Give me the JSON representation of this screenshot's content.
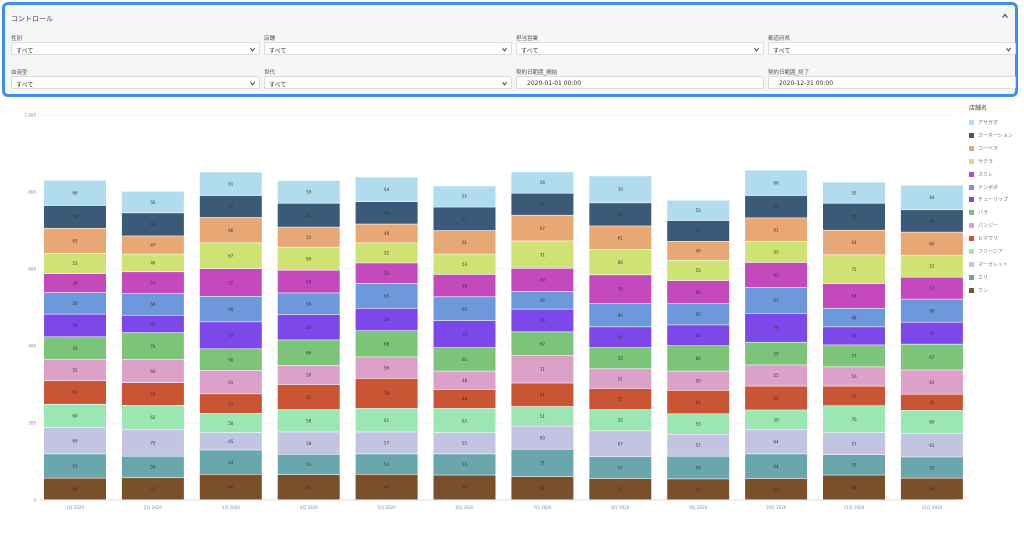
{
  "controls": {
    "title": "コントロール",
    "filters": [
      {
        "label": "性別",
        "value": "すべて"
      },
      {
        "label": "店舗",
        "value": "すべて"
      },
      {
        "label": "担当営業",
        "value": "すべて"
      },
      {
        "label": "都道府県",
        "value": "すべて"
      },
      {
        "label": "血液型",
        "value": "すべて"
      },
      {
        "label": "世代",
        "value": "すべて"
      },
      {
        "label": "契約日範囲_開始",
        "value": "2020-01-01 00:00"
      },
      {
        "label": "契約日範囲_終了",
        "value": "2020-12-31 00:00"
      }
    ]
  },
  "chart_data": {
    "type": "bar",
    "stacked": true,
    "categories": [
      "1月 2020",
      "2月 2020",
      "3月 2020",
      "4月 2020",
      "5月 2020",
      "6月 2020",
      "7月 2020",
      "8月 2020",
      "9月 2020",
      "10月 2020",
      "11月 2020",
      "12月 2020"
    ],
    "y_ticks": [
      "0",
      "200",
      "400",
      "600",
      "800",
      "1,000"
    ],
    "ylim": [
      0,
      1000
    ],
    "legend_title": "店舗名",
    "legend_position": "right",
    "series": [
      {
        "name": "ウン",
        "color": "#7a4f2b",
        "values": [
          56,
          57,
          66,
          65,
          66,
          64,
          60,
          55,
          54,
          55,
          64,
          56
        ]
      },
      {
        "name": "エリ",
        "color": "#6aa7ad",
        "values": [
          63,
          56,
          63,
          53,
          53,
          55,
          71,
          57,
          59,
          64,
          53,
          55
        ]
      },
      {
        "name": "マーガレット",
        "color": "#c3c3e2",
        "values": [
          69,
          70,
          45,
          58,
          57,
          55,
          60,
          67,
          57,
          64,
          57,
          61
        ]
      },
      {
        "name": "フリージア",
        "color": "#9be6b2",
        "values": [
          60,
          62,
          50,
          58,
          61,
          63,
          51,
          55,
          53,
          50,
          70,
          60
        ]
      },
      {
        "name": "ヒマワリ",
        "color": "#c95535",
        "values": [
          61,
          59,
          51,
          65,
          78,
          49,
          61,
          55,
          61,
          62,
          51,
          42
        ]
      },
      {
        "name": "パンジー",
        "color": "#dba1c8",
        "values": [
          55,
          60,
          61,
          50,
          56,
          48,
          71,
          51,
          50,
          55,
          50,
          63
        ]
      },
      {
        "name": "バラ",
        "color": "#7dc47b",
        "values": [
          59,
          70,
          56,
          66,
          68,
          61,
          62,
          55,
          66,
          59,
          57,
          67
        ]
      },
      {
        "name": "チューリップ",
        "color": "#7d48ea",
        "values": [
          59,
          45,
          70,
          66,
          58,
          70,
          59,
          54,
          54,
          75,
          47,
          57
        ]
      },
      {
        "name": "ナンポポ",
        "color": "#6e98dc",
        "values": [
          56,
          56,
          66,
          56,
          65,
          62,
          46,
          60,
          55,
          67,
          48,
          60
        ]
      },
      {
        "name": "スミレ",
        "color": "#c449bd",
        "values": [
          49,
          57,
          72,
          59,
          53,
          58,
          60,
          75,
          60,
          65,
          64,
          57
        ]
      },
      {
        "name": "サクラ",
        "color": "#cfe274",
        "values": [
          53,
          46,
          67,
          60,
          52,
          53,
          71,
          66,
          53,
          55,
          75,
          57
        ]
      },
      {
        "name": "コーベラ",
        "color": "#e8a876",
        "values": [
          65,
          47,
          66,
          52,
          49,
          61,
          67,
          61,
          49,
          61,
          64,
          60
        ]
      },
      {
        "name": "カーネーション",
        "color": "#3a5a78",
        "values": [
          59,
          60,
          57,
          62,
          58,
          61,
          57,
          60,
          54,
          58,
          70,
          58
        ]
      },
      {
        "name": "アサガオ",
        "color": "#b1dced",
        "values": [
          66,
          56,
          61,
          59,
          64,
          55,
          56,
          70,
          53,
          66,
          55,
          64
        ]
      }
    ]
  }
}
